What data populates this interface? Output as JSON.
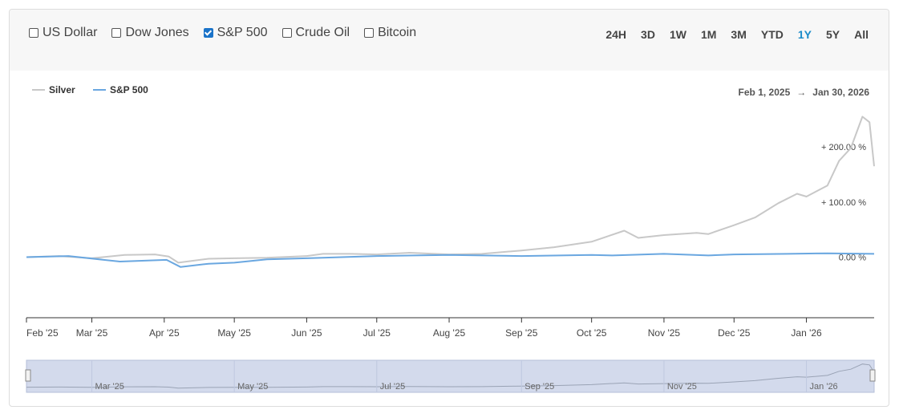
{
  "toolbar": {
    "compare": [
      {
        "label": "US Dollar",
        "checked": false
      },
      {
        "label": "Dow Jones",
        "checked": false
      },
      {
        "label": "S&P 500",
        "checked": true
      },
      {
        "label": "Crude Oil",
        "checked": false
      },
      {
        "label": "Bitcoin",
        "checked": false
      }
    ],
    "ranges": [
      "24H",
      "3D",
      "1W",
      "1M",
      "3M",
      "YTD",
      "1Y",
      "5Y",
      "All"
    ],
    "active_range": "1Y"
  },
  "date_range": {
    "from": "Feb 1, 2025",
    "arrow": "→",
    "to": "Jan 30, 2026"
  },
  "colors": {
    "silver": "#c8c8c8",
    "sp500": "#6aa7e0",
    "navigator": "#d3daec",
    "active": "#1a8bc9"
  },
  "chart_data": {
    "type": "line",
    "xlabel": "",
    "ylabel": "",
    "x_ticks": [
      "Feb '25",
      "Mar '25",
      "Apr '25",
      "May '25",
      "Jun '25",
      "Jul '25",
      "Aug '25",
      "Sep '25",
      "Oct '25",
      "Nov '25",
      "Dec '25",
      "Jan '26"
    ],
    "y_ticks": [
      {
        "value": 0,
        "label": "0.00 %"
      },
      {
        "value": 100,
        "label": "+ 100.00 %"
      },
      {
        "value": 200,
        "label": "+ 200.00 %"
      }
    ],
    "ylim": [
      -110,
      260
    ],
    "navigator_ticks": [
      "Mar '25",
      "May '25",
      "Jul '25",
      "Sep '25",
      "Nov '25",
      "Jan '26"
    ],
    "series": [
      {
        "name": "Silver",
        "color": "#c8c8c8",
        "points": [
          [
            "2025-02-01",
            0
          ],
          [
            "2025-02-15",
            2
          ],
          [
            "2025-03-01",
            -2
          ],
          [
            "2025-03-15",
            4
          ],
          [
            "2025-03-28",
            5
          ],
          [
            "2025-04-03",
            1
          ],
          [
            "2025-04-07",
            -10
          ],
          [
            "2025-04-20",
            -3
          ],
          [
            "2025-05-01",
            -2
          ],
          [
            "2025-05-15",
            -1
          ],
          [
            "2025-06-01",
            2
          ],
          [
            "2025-06-08",
            6
          ],
          [
            "2025-06-20",
            6
          ],
          [
            "2025-07-01",
            5
          ],
          [
            "2025-07-15",
            8
          ],
          [
            "2025-08-01",
            5
          ],
          [
            "2025-08-15",
            6
          ],
          [
            "2025-09-01",
            12
          ],
          [
            "2025-09-15",
            18
          ],
          [
            "2025-10-01",
            28
          ],
          [
            "2025-10-08",
            38
          ],
          [
            "2025-10-15",
            48
          ],
          [
            "2025-10-21",
            35
          ],
          [
            "2025-11-01",
            40
          ],
          [
            "2025-11-15",
            44
          ],
          [
            "2025-11-20",
            42
          ],
          [
            "2025-12-01",
            58
          ],
          [
            "2025-12-10",
            72
          ],
          [
            "2025-12-20",
            98
          ],
          [
            "2025-12-28",
            115
          ],
          [
            "2026-01-01",
            110
          ],
          [
            "2026-01-10",
            130
          ],
          [
            "2026-01-15",
            175
          ],
          [
            "2026-01-20",
            198
          ],
          [
            "2026-01-25",
            255
          ],
          [
            "2026-01-28",
            245
          ],
          [
            "2026-01-30",
            165
          ]
        ]
      },
      {
        "name": "S&P 500",
        "color": "#6aa7e0",
        "points": [
          [
            "2025-02-01",
            0
          ],
          [
            "2025-02-19",
            2
          ],
          [
            "2025-03-13",
            -8
          ],
          [
            "2025-04-02",
            -5
          ],
          [
            "2025-04-08",
            -18
          ],
          [
            "2025-04-20",
            -12
          ],
          [
            "2025-05-01",
            -10
          ],
          [
            "2025-05-15",
            -4
          ],
          [
            "2025-06-01",
            -2
          ],
          [
            "2025-07-01",
            2
          ],
          [
            "2025-08-01",
            4
          ],
          [
            "2025-09-01",
            2
          ],
          [
            "2025-10-01",
            4
          ],
          [
            "2025-10-10",
            3
          ],
          [
            "2025-11-01",
            6
          ],
          [
            "2025-11-20",
            3
          ],
          [
            "2025-12-01",
            5
          ],
          [
            "2025-12-24",
            6
          ],
          [
            "2026-01-10",
            7
          ],
          [
            "2026-01-30",
            6
          ]
        ]
      }
    ]
  }
}
